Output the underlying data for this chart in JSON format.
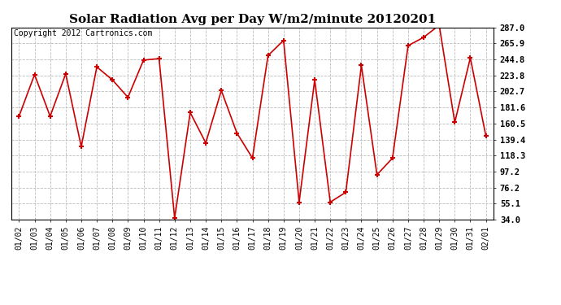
{
  "title": "Solar Radiation Avg per Day W/m2/minute 20120201",
  "copyright": "Copyright 2012 Cartronics.com",
  "dates": [
    "01/02",
    "01/03",
    "01/04",
    "01/05",
    "01/06",
    "01/07",
    "01/08",
    "01/09",
    "01/10",
    "01/11",
    "01/12",
    "01/13",
    "01/14",
    "01/15",
    "01/16",
    "01/17",
    "01/18",
    "01/19",
    "01/20",
    "01/21",
    "01/22",
    "01/23",
    "01/24",
    "01/25",
    "01/26",
    "01/27",
    "01/28",
    "01/29",
    "01/30",
    "01/31",
    "02/01"
  ],
  "values": [
    170,
    225,
    170,
    226,
    130,
    235,
    218,
    195,
    244,
    246,
    36,
    175,
    135,
    204,
    148,
    115,
    250,
    270,
    57,
    218,
    57,
    70,
    237,
    93,
    115,
    263,
    274,
    290,
    162,
    247,
    144
  ],
  "line_color": "#cc0000",
  "marker": "+",
  "marker_size": 5,
  "marker_color": "#cc0000",
  "bg_color": "#ffffff",
  "grid_color": "#bbbbbb",
  "yticks": [
    34.0,
    55.1,
    76.2,
    97.2,
    118.3,
    139.4,
    160.5,
    181.6,
    202.7,
    223.8,
    244.8,
    265.9,
    287.0
  ],
  "ylim": [
    34.0,
    287.0
  ],
  "title_fontsize": 11,
  "copyright_fontsize": 7,
  "tick_fontsize": 7.5,
  "xtick_fontsize": 7
}
